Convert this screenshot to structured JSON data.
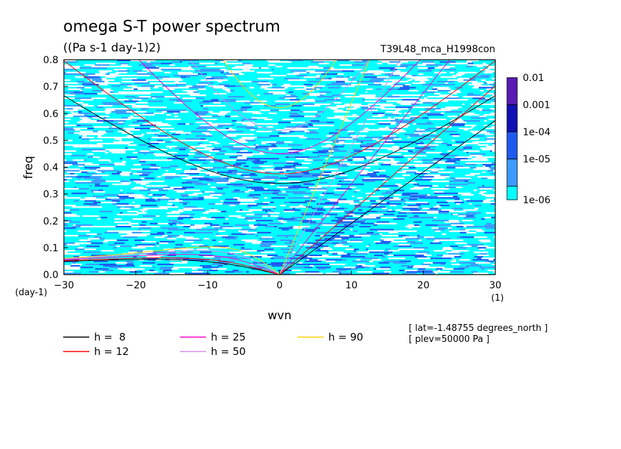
{
  "chart_data": {
    "type": "heatmap",
    "title": "omega S-T power spectrum",
    "subtitle": "((Pa s-1 day-1)2)",
    "run_label": "T39L48_mca_H1998con",
    "xlabel": "wvn",
    "ylabel": "freq",
    "x_unit": "(1)",
    "y_unit": "(day-1)",
    "xlim": [
      -30,
      30
    ],
    "ylim": [
      0,
      0.8
    ],
    "x_ticks": [
      -30,
      -20,
      -10,
      0,
      10,
      20,
      30
    ],
    "x_tick_labels": [
      "-30",
      "-20",
      "-10",
      "0",
      "10",
      "20",
      "30"
    ],
    "y_ticks": [
      0,
      0.1,
      0.2,
      0.3,
      0.4,
      0.5,
      0.6,
      0.7,
      0.8
    ],
    "y_tick_labels": [
      "0.0",
      "0.1",
      "0.2",
      "0.3",
      "0.4",
      "0.5",
      "0.6",
      "0.7",
      "0.8"
    ],
    "colorbar": {
      "levels": [
        "0.01",
        "0.001",
        "1e-04",
        "1e-05",
        "1e-06"
      ],
      "colors": [
        "#5a1ab4",
        "#1010b4",
        "#1e5af0",
        "#3c9bff",
        "#00ffff"
      ],
      "scale": "log"
    },
    "field_colors": {
      "below_1e-06": "#ffffff",
      "1e-06_to_1e-05": "#00ffff",
      "1e-05_to_1e-04": "#3c9bff",
      "1e-04_to_0.001": "#1e5af0"
    },
    "dispersion_curves": [
      {
        "label": "h =  8",
        "h": 8,
        "color": "#000000"
      },
      {
        "label": "h = 12",
        "h": 12,
        "color": "#ff0000"
      },
      {
        "label": "h = 25",
        "h": 25,
        "color": "#ff00c8"
      },
      {
        "label": "h = 50",
        "h": 50,
        "color": "#d98cf0"
      },
      {
        "label": "h = 90",
        "h": 90,
        "color": "#ffd200"
      }
    ],
    "notes": [
      "[ lat=-1.48755 degrees_north ]",
      "[ plev=50000 Pa ]"
    ],
    "grid": false
  }
}
